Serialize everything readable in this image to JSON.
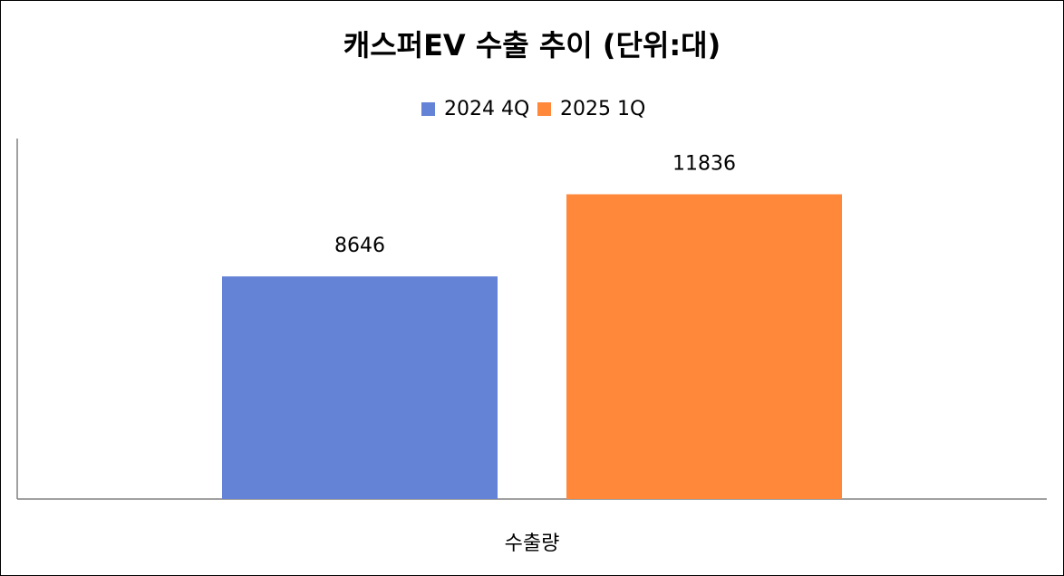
{
  "chart_data": {
    "type": "bar",
    "title": "캐스퍼EV 수출 추이 (단위:대)",
    "categories": [
      "수출량"
    ],
    "series": [
      {
        "name": "2024 4Q",
        "color": "#6482d6",
        "values": [
          8646
        ]
      },
      {
        "name": "2025 1Q",
        "color": "#ff883a",
        "values": [
          11836
        ]
      }
    ],
    "ylim": [
      0,
      14000
    ],
    "legend": "top"
  }
}
